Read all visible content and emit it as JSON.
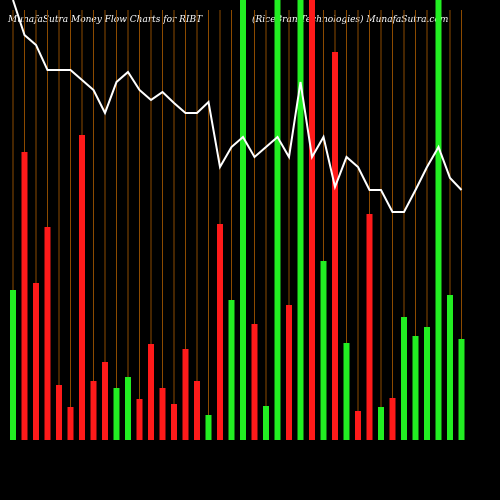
{
  "chart_data": {
    "type": "bar",
    "title": "MunafaSutra  Money Flow  Charts for RIBT",
    "subtitle": "(RiceBran  Technologies) MunafaSutra.com",
    "background": "#000000",
    "grid_color": "#8b4a00",
    "ylim": [
      0,
      440
    ],
    "series": [
      {
        "name": "Money Flow",
        "type": "bar",
        "values": [
          150,
          288,
          157,
          213,
          55,
          33,
          305,
          59,
          78,
          52,
          63,
          41,
          96,
          52,
          36,
          91,
          59,
          25,
          216,
          140,
          440,
          116,
          34,
          440,
          135,
          440,
          440,
          179,
          388,
          97,
          29,
          226,
          33,
          42,
          123,
          104,
          113,
          440,
          145,
          101
        ],
        "colors": [
          "#22ee22",
          "#ff1a1a",
          "#ff1a1a",
          "#ff1a1a",
          "#ff1a1a",
          "#ff1a1a",
          "#ff1a1a",
          "#ff1a1a",
          "#ff1a1a",
          "#22ee22",
          "#22ee22",
          "#ff1a1a",
          "#ff1a1a",
          "#ff1a1a",
          "#ff1a1a",
          "#ff1a1a",
          "#ff1a1a",
          "#22ee22",
          "#ff1a1a",
          "#22ee22",
          "#22ee22",
          "#ff1a1a",
          "#22ee22",
          "#22ee22",
          "#ff1a1a",
          "#22ee22",
          "#ff1a1a",
          "#22ee22",
          "#ff1a1a",
          "#22ee22",
          "#ff1a1a",
          "#ff1a1a",
          "#22ee22",
          "#ff1a1a",
          "#22ee22",
          "#22ee22",
          "#22ee22",
          "#22ee22",
          "#22ee22",
          "#22ee22"
        ]
      },
      {
        "name": "Price",
        "type": "line",
        "color": "#ffffff",
        "values": [
          440,
          405,
          395,
          370,
          370,
          370,
          360,
          350,
          327,
          358,
          368,
          350,
          340,
          348,
          337,
          327,
          327,
          338,
          273,
          293,
          303,
          283,
          293,
          303,
          283,
          358,
          283,
          303,
          253,
          283,
          273,
          250,
          250,
          228,
          228,
          250,
          273,
          293,
          262,
          250
        ]
      }
    ]
  }
}
